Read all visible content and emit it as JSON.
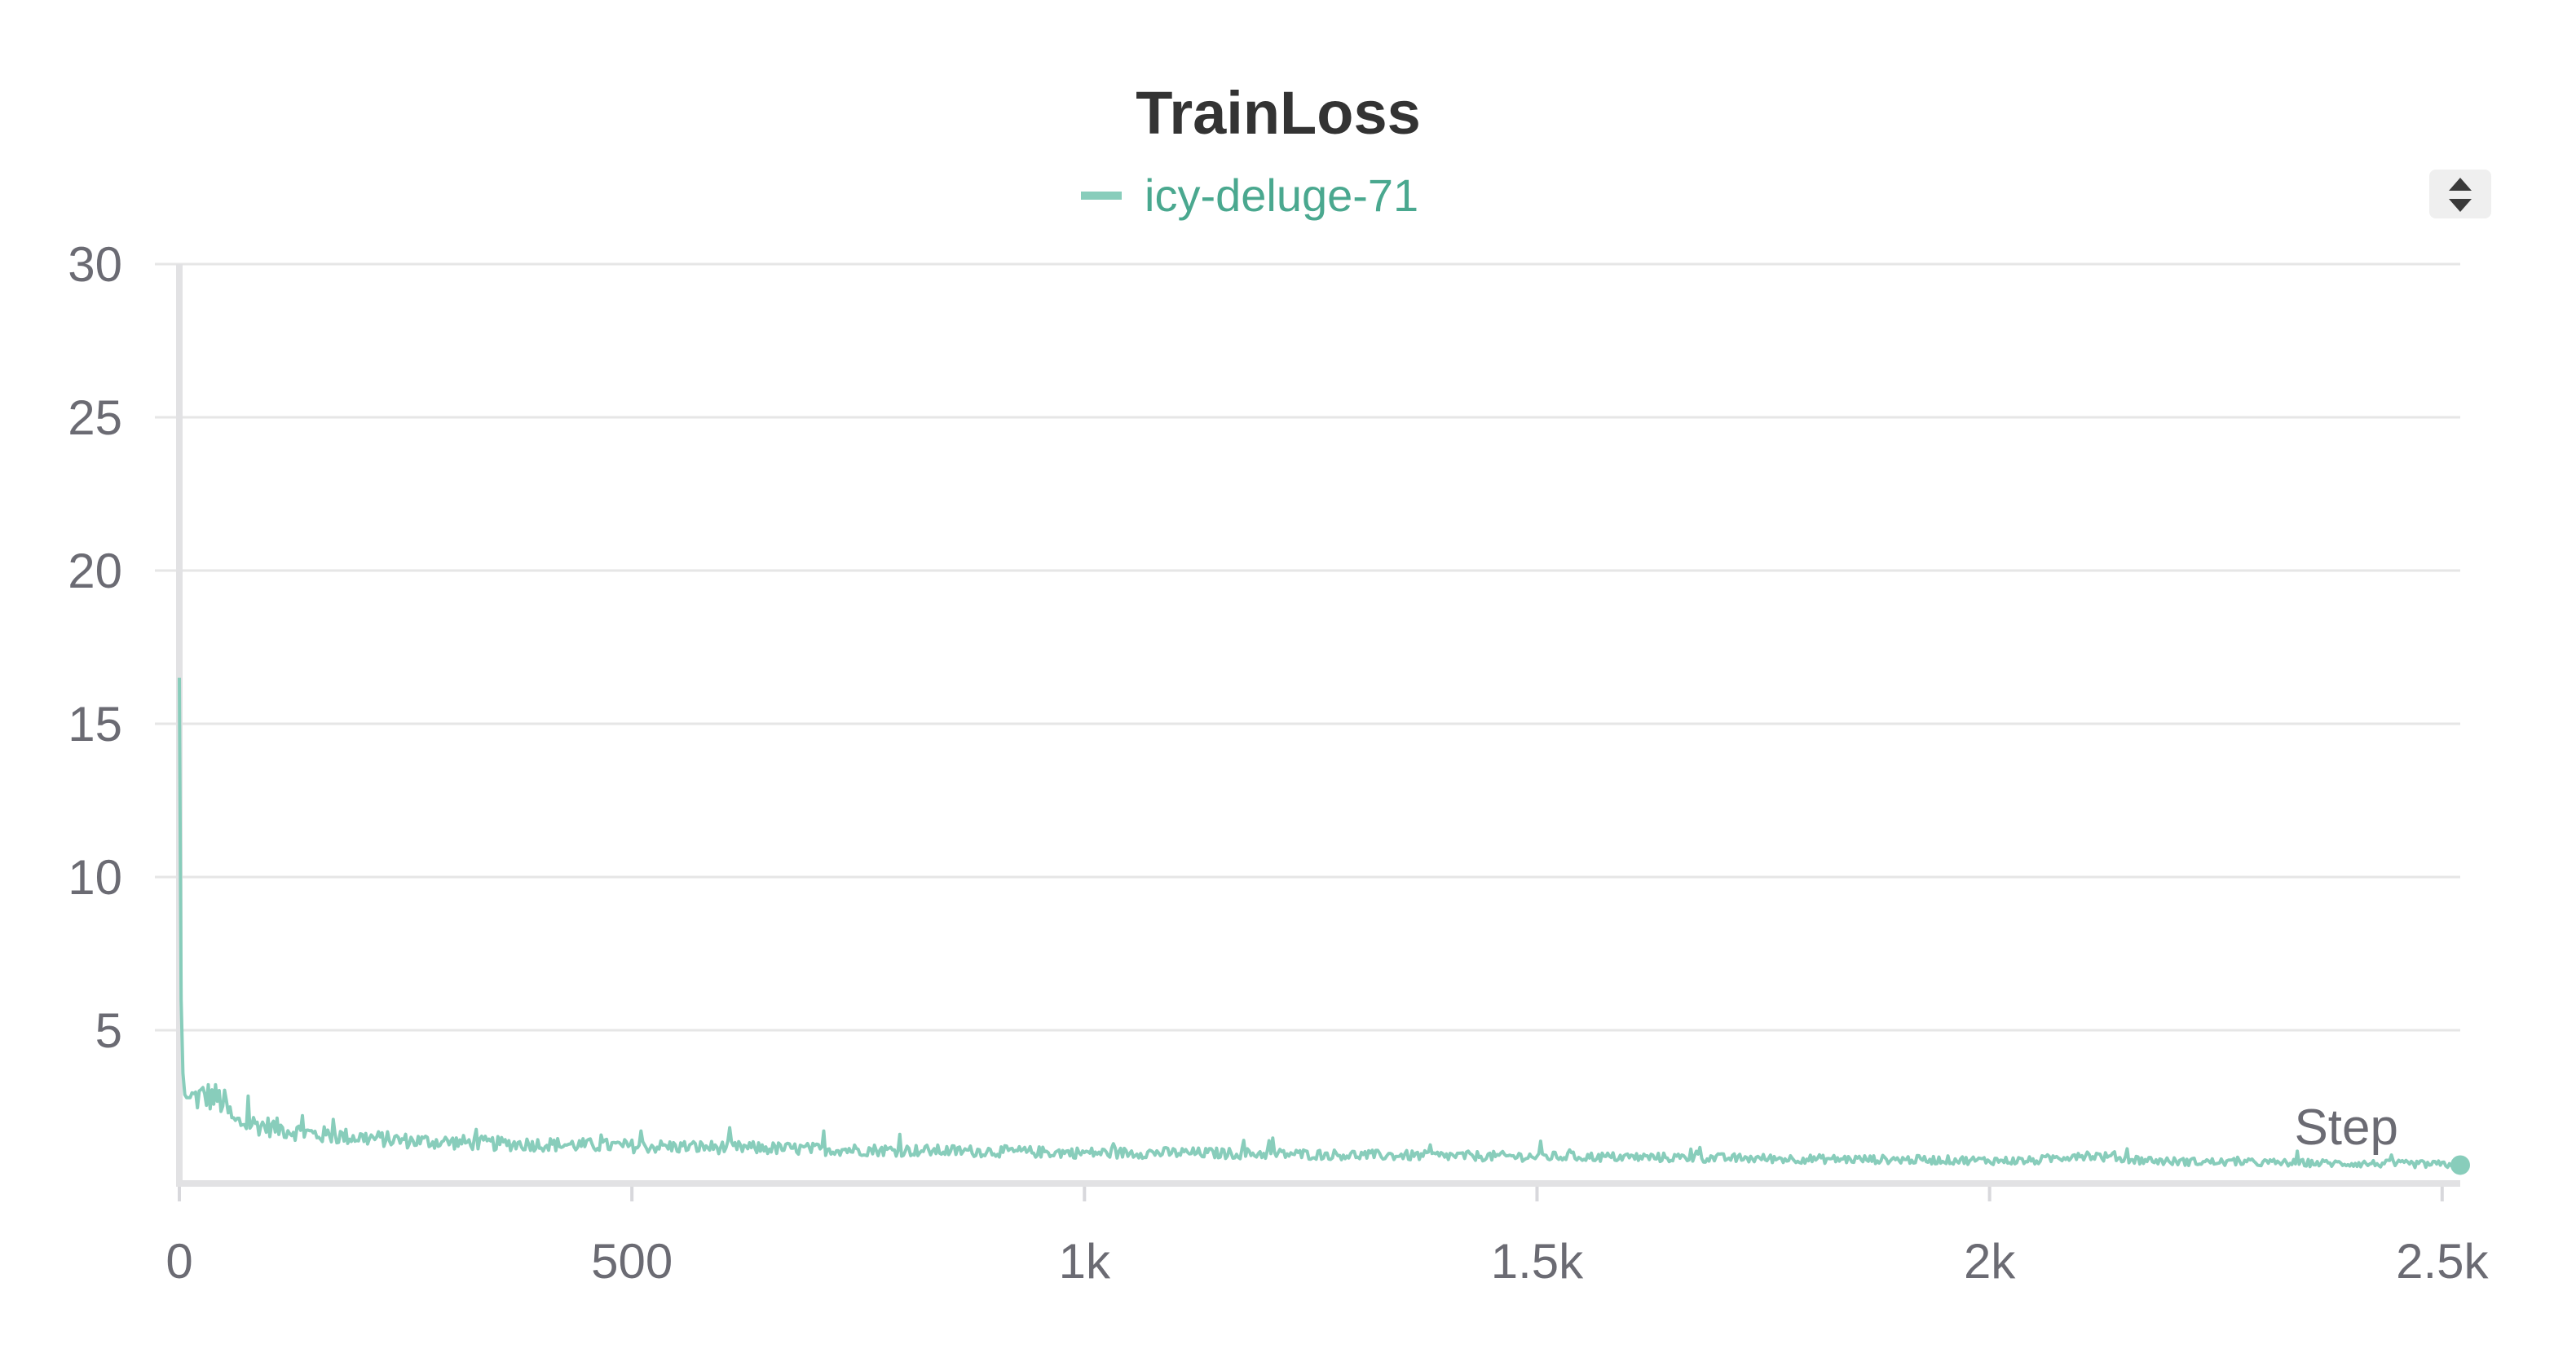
{
  "chart_data": {
    "type": "line",
    "title": "TrainLoss",
    "xlabel": "Step",
    "ylabel": "",
    "xlim": [
      0,
      2520
    ],
    "ylim": [
      0,
      30
    ],
    "x_ticks": [
      0,
      500,
      1000,
      1500,
      2000,
      2500
    ],
    "x_tick_labels": [
      "0",
      "500",
      "1k",
      "1.5k",
      "2k",
      "2.5k"
    ],
    "y_ticks": [
      5,
      10,
      15,
      20,
      25,
      30
    ],
    "y_tick_labels": [
      "5",
      "10",
      "15",
      "20",
      "25",
      "30"
    ],
    "grid": true,
    "legend_position": "top-center",
    "series": [
      {
        "name": "icy-deluge-71",
        "color": "#88cdbb",
        "legend_text_color": "#4aa88f",
        "x": [
          0,
          2,
          4,
          6,
          8,
          10,
          20,
          30,
          40,
          50,
          60,
          80,
          100,
          120,
          150,
          200,
          250,
          300,
          350,
          400,
          450,
          500,
          600,
          700,
          800,
          900,
          1000,
          1100,
          1200,
          1300,
          1400,
          1500,
          1600,
          1700,
          1800,
          1900,
          2000,
          2050,
          2100,
          2150,
          2200,
          2250,
          2300,
          2350,
          2400,
          2450,
          2500,
          2520
        ],
        "values": [
          16.5,
          6.0,
          3.6,
          2.9,
          2.8,
          2.8,
          2.8,
          2.85,
          2.8,
          2.6,
          2.0,
          1.95,
          1.85,
          1.75,
          1.6,
          1.5,
          1.4,
          1.35,
          1.3,
          1.28,
          1.25,
          1.22,
          1.18,
          1.12,
          1.08,
          1.05,
          1.0,
          1.0,
          0.97,
          0.93,
          0.9,
          0.88,
          0.86,
          0.83,
          0.8,
          0.78,
          0.75,
          0.74,
          0.95,
          0.8,
          0.72,
          0.7,
          0.68,
          0.67,
          0.65,
          0.64,
          0.62,
          0.6
        ]
      }
    ]
  },
  "controls": {
    "legend_toggle_icon": "sort-arrows-icon"
  }
}
